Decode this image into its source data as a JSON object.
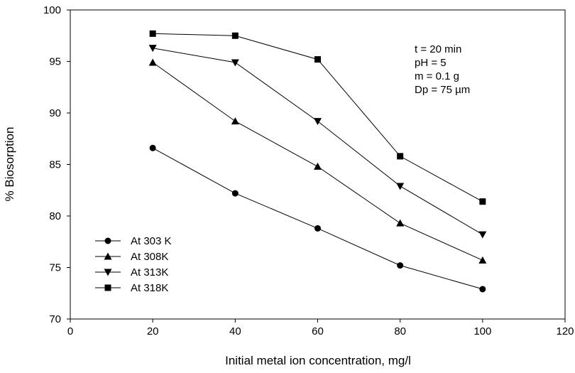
{
  "chart_data": {
    "type": "line",
    "xlabel": "Initial metal ion concentration, mg/l",
    "ylabel": "% Biosorption",
    "xlim": [
      0,
      120
    ],
    "ylim": [
      70,
      100
    ],
    "x_ticks": [
      0,
      20,
      40,
      60,
      80,
      100,
      120
    ],
    "y_ticks": [
      70,
      75,
      80,
      85,
      90,
      95,
      100
    ],
    "grid": false,
    "legend_position": "bottom-left",
    "x": [
      20,
      40,
      60,
      80,
      100
    ],
    "series": [
      {
        "name": "At 303 K",
        "marker": "circle",
        "values": [
          86.6,
          82.2,
          78.8,
          75.2,
          72.9
        ]
      },
      {
        "name": "At 308K",
        "marker": "triangle-up",
        "values": [
          94.9,
          89.2,
          84.8,
          79.3,
          75.7
        ]
      },
      {
        "name": "At 313K",
        "marker": "triangle-down",
        "values": [
          96.3,
          94.9,
          89.2,
          82.9,
          78.2
        ]
      },
      {
        "name": "At 318K",
        "marker": "square",
        "values": [
          97.7,
          97.5,
          95.2,
          85.8,
          81.4
        ]
      }
    ],
    "annotations": [
      "t = 20 min",
      "pH = 5",
      "m = 0.1 g",
      "Dp = 75 µm"
    ]
  }
}
